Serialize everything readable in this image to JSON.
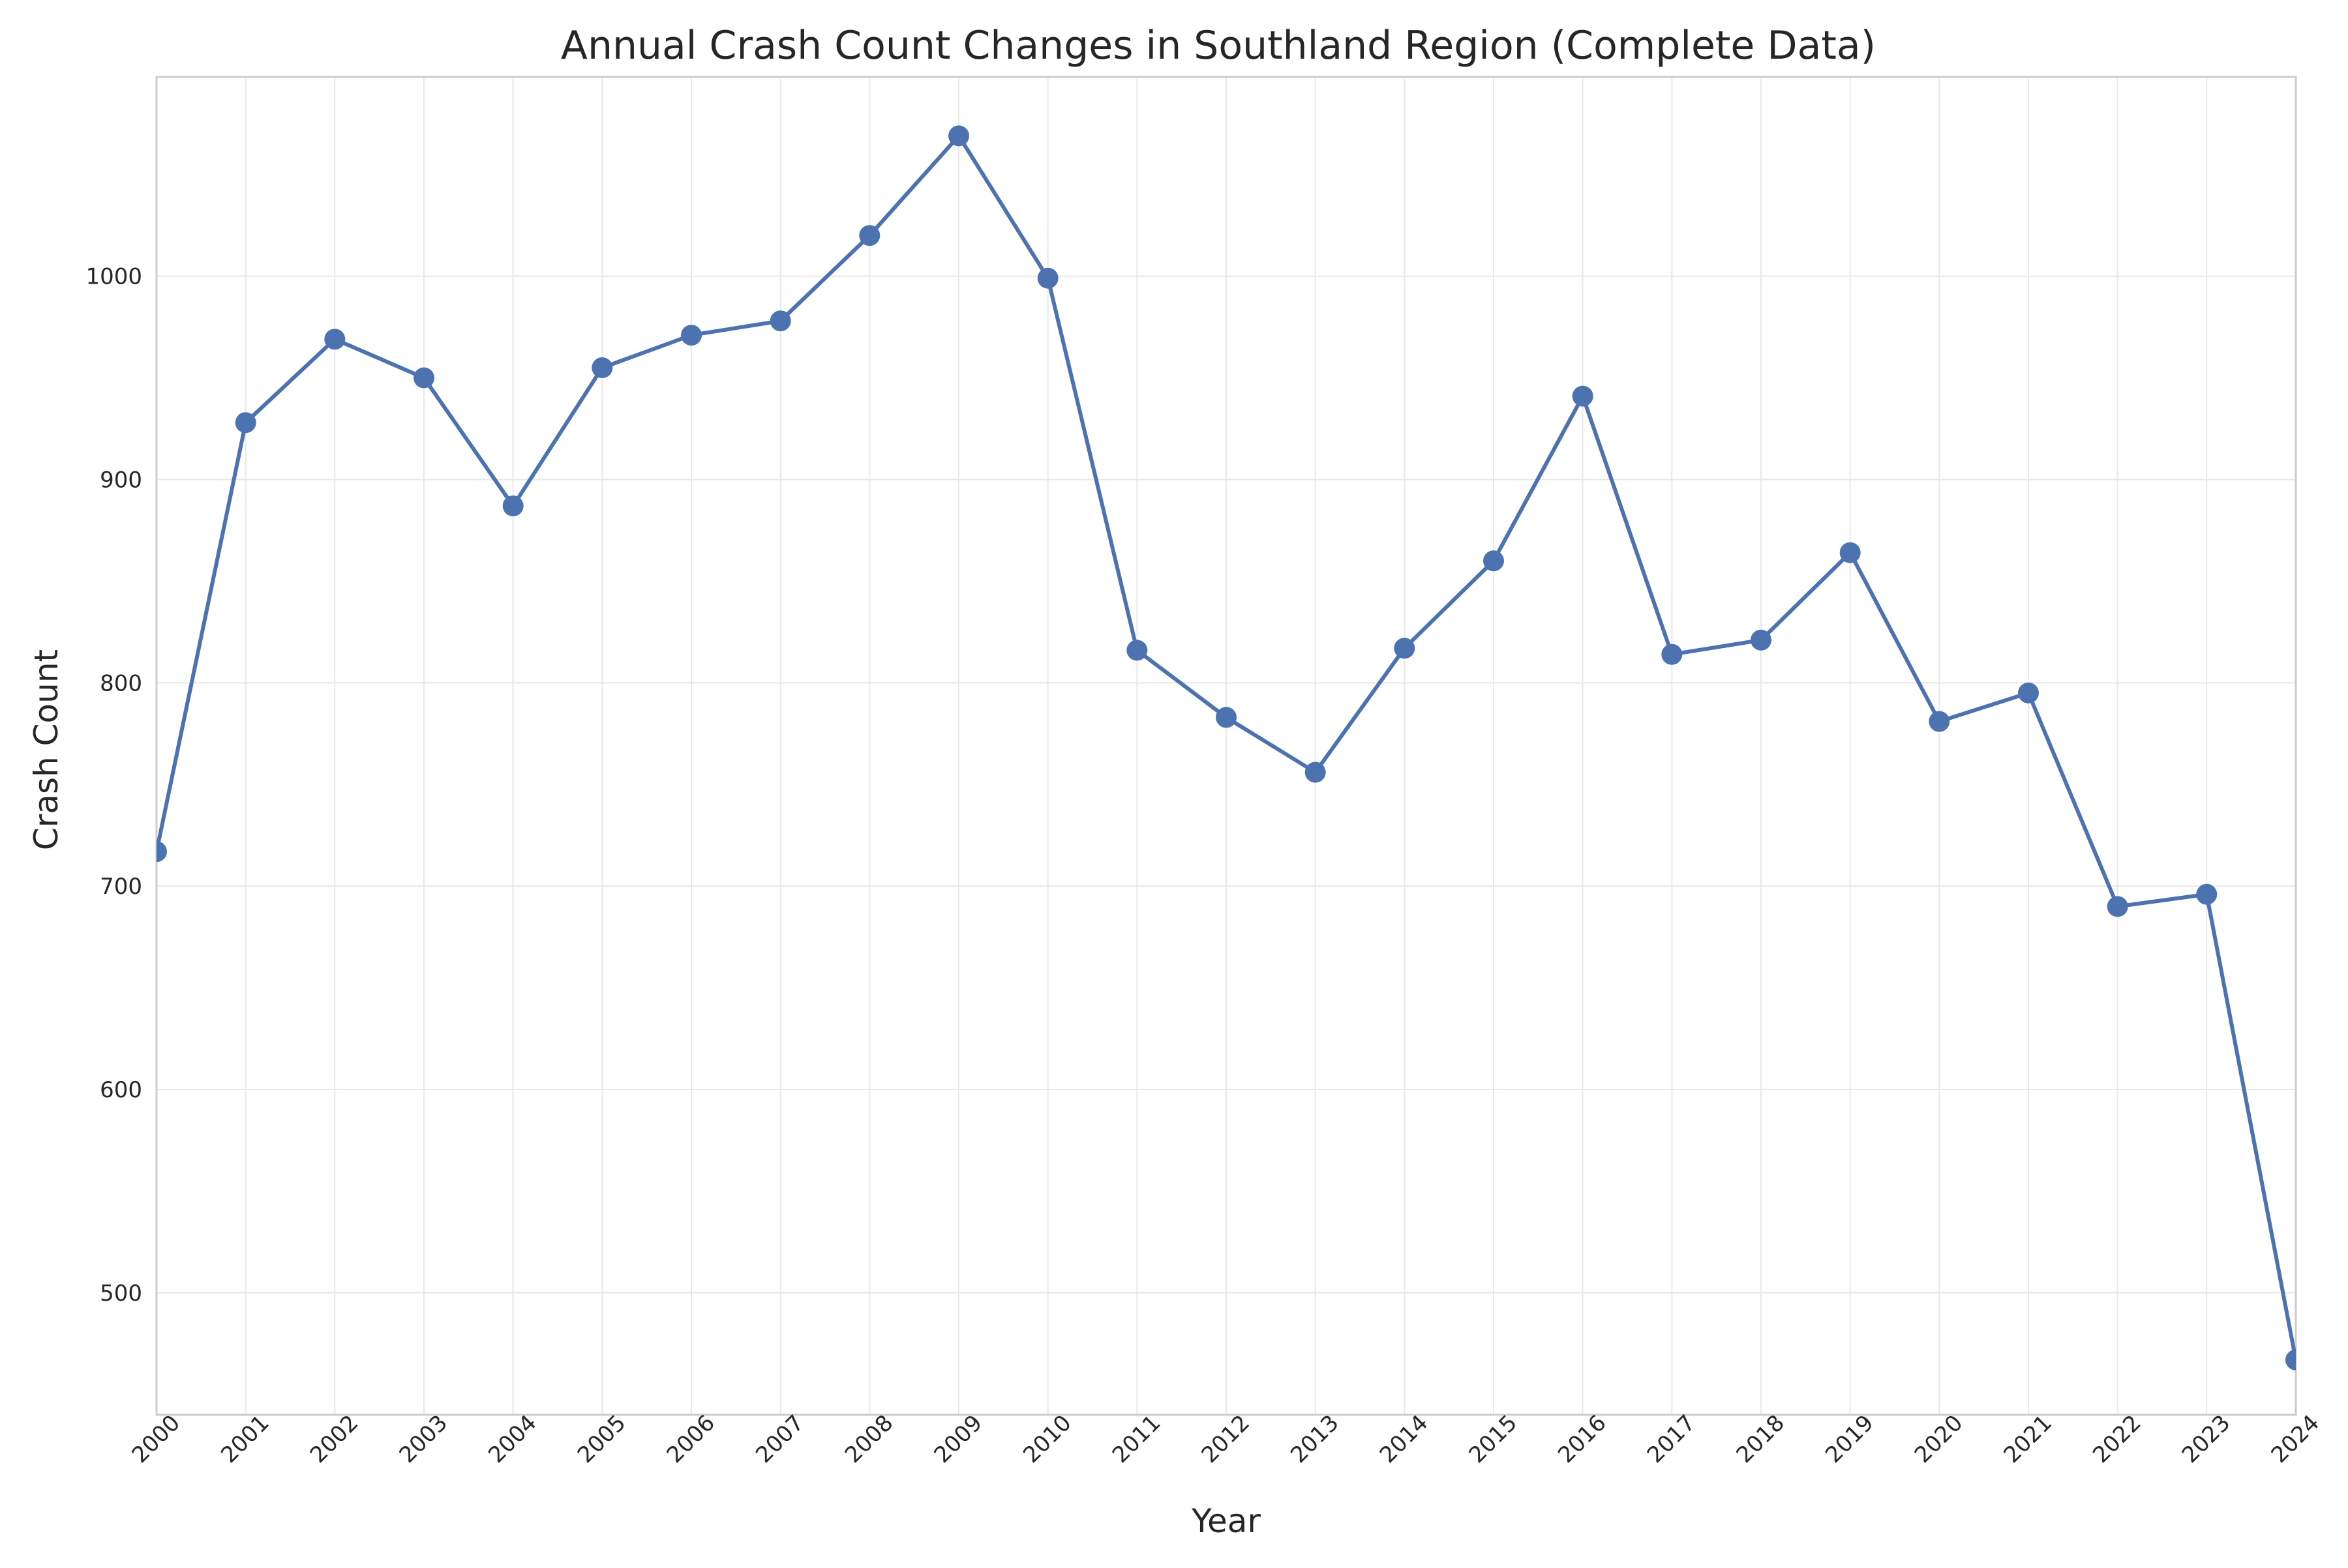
{
  "chart_data": {
    "type": "line",
    "title": "Annual Crash Count Changes in Southland Region (Complete Data)",
    "xlabel": "Year",
    "ylabel": "Crash Count",
    "x": [
      "2000",
      "2001",
      "2002",
      "2003",
      "2004",
      "2005",
      "2006",
      "2007",
      "2008",
      "2009",
      "2010",
      "2011",
      "2012",
      "2013",
      "2014",
      "2015",
      "2016",
      "2017",
      "2018",
      "2019",
      "2020",
      "2021",
      "2022",
      "2023",
      "2024"
    ],
    "series": [
      {
        "values": [
          717,
          928,
          969,
          950,
          887,
          955,
          971,
          978,
          1020,
          1069,
          999,
          816,
          783,
          756,
          817,
          860,
          941,
          814,
          821,
          864,
          781,
          795,
          690,
          696,
          467
        ],
        "color": "#4c72b0",
        "marker": "circle"
      }
    ],
    "xlim": [
      "2000",
      "2024"
    ],
    "ylim": [
      440,
      1098
    ],
    "yticks": [
      500,
      600,
      700,
      800,
      900,
      1000
    ],
    "grid": true,
    "legend": "none",
    "xtick_rotation": 45
  }
}
